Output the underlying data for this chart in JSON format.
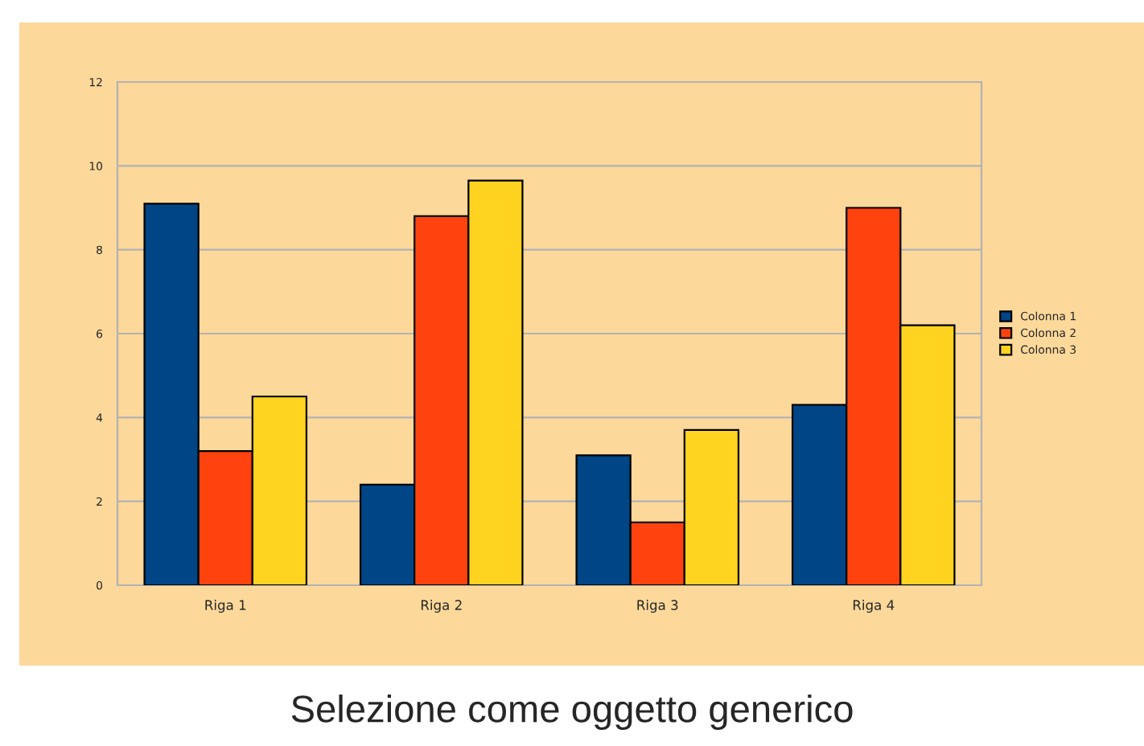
{
  "chart_data": {
    "type": "bar",
    "categories": [
      "Riga 1",
      "Riga 2",
      "Riga 3",
      "Riga 4"
    ],
    "series": [
      {
        "name": "Colonna 1",
        "color": "#004586",
        "values": [
          9.1,
          2.4,
          3.1,
          4.3
        ]
      },
      {
        "name": "Colonna 2",
        "color": "#ff420e",
        "values": [
          3.2,
          8.8,
          1.5,
          9.0
        ]
      },
      {
        "name": "Colonna 3",
        "color": "#ffd320",
        "values": [
          4.5,
          9.65,
          3.7,
          6.2
        ]
      }
    ],
    "ylim": [
      0,
      12
    ],
    "yticks": [
      0,
      2,
      4,
      6,
      8,
      10,
      12
    ],
    "grid": "y",
    "legend": "right",
    "annotations": [
      "Selezione come oggetto generico"
    ]
  }
}
